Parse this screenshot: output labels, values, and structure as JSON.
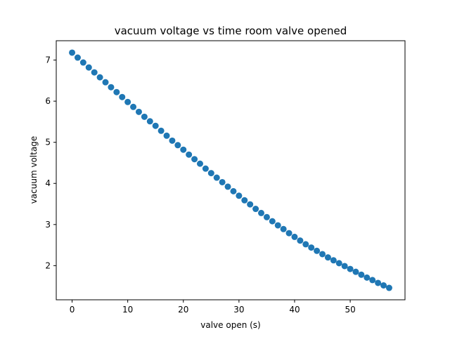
{
  "chart_data": {
    "type": "scatter",
    "title": "vacuum voltage vs time room valve opened",
    "xlabel": "valve open (s)",
    "ylabel": "vacuum voltage",
    "xlim": [
      -2.85,
      59.85
    ],
    "ylim": [
      1.17,
      7.47
    ],
    "xticks": [
      0,
      10,
      20,
      30,
      40,
      50
    ],
    "yticks": [
      2,
      3,
      4,
      5,
      6,
      7
    ],
    "grid": false,
    "marker_color": "#1f77b4",
    "series": [
      {
        "x": [
          0,
          1,
          2,
          3,
          4,
          5,
          6,
          7,
          8,
          9,
          10,
          11,
          12,
          13,
          14,
          15,
          16,
          17,
          18,
          19,
          20,
          21,
          22,
          23,
          24,
          25,
          26,
          27,
          28,
          29,
          30,
          31,
          32,
          33,
          34,
          35,
          36,
          37,
          38,
          39,
          40,
          41,
          42,
          43,
          44,
          45,
          46,
          47,
          48,
          49,
          50,
          51,
          52,
          53,
          54,
          55,
          56,
          57
        ],
        "y": [
          7.18,
          7.06,
          6.94,
          6.82,
          6.7,
          6.58,
          6.46,
          6.34,
          6.22,
          6.1,
          5.98,
          5.86,
          5.74,
          5.62,
          5.51,
          5.4,
          5.28,
          5.16,
          5.04,
          4.93,
          4.82,
          4.7,
          4.59,
          4.48,
          4.36,
          4.25,
          4.14,
          4.03,
          3.92,
          3.81,
          3.7,
          3.59,
          3.49,
          3.38,
          3.28,
          3.18,
          3.08,
          2.98,
          2.89,
          2.79,
          2.7,
          2.61,
          2.52,
          2.44,
          2.36,
          2.28,
          2.2,
          2.13,
          2.06,
          1.99,
          1.92,
          1.85,
          1.78,
          1.71,
          1.65,
          1.58,
          1.52,
          1.46
        ]
      }
    ]
  }
}
